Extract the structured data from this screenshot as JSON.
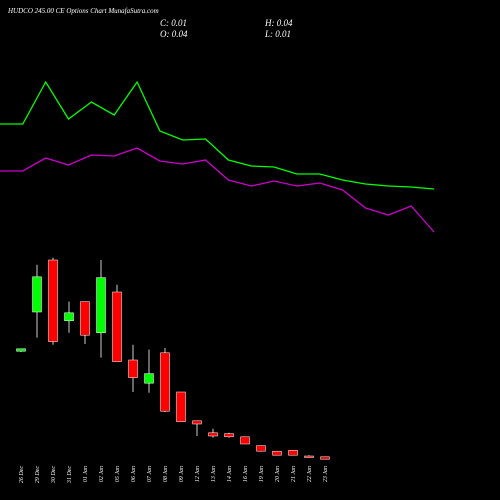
{
  "chart_data": {
    "type": "candlestick",
    "title": "HUDCO 245.00 CE Options Chart MunafaSutra.com",
    "ohlc_labels": [
      "C: 0.01",
      "O: 0.04",
      "H: 0.04",
      "L: 0.01"
    ],
    "categories": [
      "26 Dec",
      "29 Dec",
      "30 Dec",
      "31 Dec",
      "01 Jan",
      "02 Jan",
      "05 Jan",
      "06 Jan",
      "07 Jan",
      "08 Jan",
      "09 Jan",
      "12 Jan",
      "13 Jan",
      "14 Jan",
      "16 Jan",
      "19 Jan",
      "20 Jan",
      "21 Jan",
      "22 Jan",
      "23 Jan"
    ],
    "open": [
      1.36,
      1.85,
      2.5,
      1.74,
      1.98,
      1.59,
      2.1,
      1.25,
      0.96,
      1.34,
      0.85,
      0.49,
      0.34,
      0.33,
      0.29,
      0.18,
      0.11,
      0.12,
      0.05,
      0.04
    ],
    "high": [
      1.39,
      2.44,
      2.53,
      1.98,
      1.98,
      2.5,
      2.19,
      1.44,
      1.38,
      1.4,
      0.85,
      0.49,
      0.39,
      0.34,
      0.29,
      0.18,
      0.11,
      0.12,
      0.06,
      0.04
    ],
    "low": [
      1.35,
      1.53,
      1.44,
      1.59,
      1.45,
      1.28,
      1.23,
      0.85,
      0.84,
      0.6,
      0.48,
      0.3,
      0.28,
      0.28,
      0.2,
      0.11,
      0.06,
      0.06,
      0.04,
      0.01
    ],
    "close": [
      1.39,
      2.29,
      1.48,
      1.84,
      1.56,
      2.28,
      1.23,
      1.03,
      1.08,
      0.61,
      0.48,
      0.45,
      0.3,
      0.29,
      0.2,
      0.11,
      0.06,
      0.06,
      0.04,
      0.01
    ],
    "up_color": "#00ff00",
    "down_color": "#ff0000",
    "ylim": [
      0,
      2.75
    ],
    "indicator": {
      "ylim": [
        0,
        1.6
      ],
      "series": [
        {
          "color": "#00ff00",
          "values": [
            1.16,
            1.16,
            1.58,
            1.21,
            1.38,
            1.25,
            1.58,
            1.09,
            1.0,
            1.01,
            0.8,
            0.74,
            0.73,
            0.66,
            0.66,
            0.6,
            0.56,
            0.54,
            0.53,
            0.51
          ]
        },
        {
          "color": "#cc00cc",
          "values": [
            0.69,
            0.69,
            0.82,
            0.75,
            0.85,
            0.84,
            0.92,
            0.79,
            0.76,
            0.8,
            0.6,
            0.54,
            0.59,
            0.54,
            0.57,
            0.5,
            0.32,
            0.25,
            0.34,
            0.08
          ]
        }
      ]
    }
  }
}
